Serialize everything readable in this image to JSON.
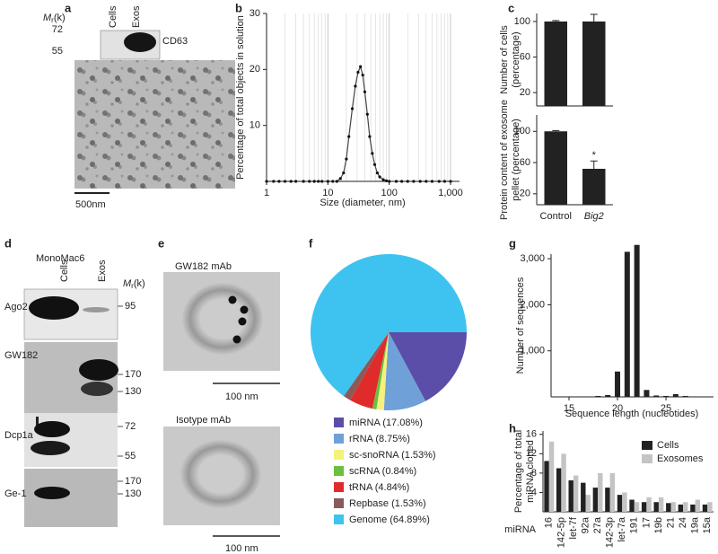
{
  "blot_a": {
    "letter": "a",
    "mr": [
      "M",
      "r",
      "(k)"
    ],
    "lanes": [
      "Cells",
      "Exos"
    ],
    "markers": [
      72,
      55
    ],
    "protein": "CD63",
    "scale": "500nm"
  },
  "blot_d": {
    "letter": "d",
    "cell_line": "MonoMac6",
    "lanes": [
      "Cells",
      "Exos"
    ],
    "mr": [
      "M",
      "r",
      "(k)"
    ],
    "rows": [
      {
        "protein": "Ago2",
        "markers": [
          95
        ]
      },
      {
        "protein": "GW182",
        "markers": [
          170,
          130
        ]
      },
      {
        "protein": "Dcp1a",
        "markers": [
          72,
          55
        ]
      },
      {
        "protein": "Ge-1",
        "markers": [
          170,
          130
        ]
      }
    ]
  },
  "em_e": {
    "letter": "e",
    "images": [
      {
        "label": "GW182 mAb",
        "scale": "100 nm"
      },
      {
        "label": "Isotype mAb",
        "scale": "100 nm"
      }
    ]
  },
  "chart_data": [
    {
      "letter": "b",
      "type": "line",
      "ylabel": "Percentage of total objects in solution",
      "xlabel": "Size (diameter, nm)",
      "xlog": true,
      "grid": true,
      "color": "#444",
      "x": [
        1,
        1.3,
        1.6,
        2,
        2.5,
        3,
        4,
        5,
        6,
        7,
        8,
        10,
        12,
        14,
        16,
        18,
        20,
        22,
        25,
        28,
        31,
        34,
        37,
        40,
        44,
        48,
        53,
        58,
        64,
        70,
        80,
        90,
        100,
        130,
        160,
        200,
        250,
        320,
        400,
        500,
        650,
        800,
        1000
      ],
      "values": [
        0,
        0,
        0,
        0,
        0,
        0,
        0,
        0,
        0,
        0,
        0,
        0,
        0,
        0,
        0.5,
        1.5,
        4,
        8,
        13,
        17,
        19.5,
        20.5,
        19,
        16,
        12,
        8,
        5,
        3,
        1.5,
        0.8,
        0.3,
        0.1,
        0,
        0,
        0,
        0,
        0,
        0,
        0,
        0,
        0,
        0,
        0
      ],
      "xlim": [
        1,
        1400
      ],
      "xticks": [
        1,
        10,
        100,
        {
          "value": 1000,
          "label": "1,000"
        }
      ],
      "ylim": [
        0,
        30
      ],
      "yticks": [
        10,
        20,
        30
      ]
    },
    {
      "letter": "c",
      "type": "bar",
      "ylabel": [
        "Number of cells",
        "(percentage)"
      ],
      "categories": [
        null,
        null
      ],
      "values": [
        100,
        100
      ],
      "errors": [
        1,
        8
      ],
      "color": "#222",
      "ylim": [
        5,
        109
      ],
      "yticks": [
        20,
        60,
        100
      ]
    },
    {
      "type": "bar",
      "ylabel": [
        "Protein content of exosome",
        "pellet (percentage)"
      ],
      "categories": [
        "Control",
        "Big2"
      ],
      "category_italic": [
        false,
        true
      ],
      "values": [
        100,
        52
      ],
      "errors": [
        1,
        10
      ],
      "color": "#222",
      "ylim": [
        6,
        121
      ],
      "yticks": [
        20,
        60,
        100
      ],
      "annotations": [
        {
          "text": "*",
          "category": "Big2"
        }
      ]
    },
    {
      "letter": "f",
      "type": "pie",
      "categories": [
        "miRNA (17.08%)",
        "rRNA (8.75%)",
        "sc-snoRNA (1.53%)",
        "scRNA (0.84%)",
        "tRNA (4.84%)",
        "Repbase (1.53%)",
        "Genome (64.89%)"
      ],
      "values": [
        17.08,
        8.75,
        1.53,
        0.84,
        4.84,
        1.53,
        64.89
      ],
      "colors": [
        "#5b4ea8",
        "#6fa1d8",
        "#f4f27a",
        "#6cbf3f",
        "#e02b2b",
        "#8a5a5a",
        "#3ec3f0"
      ]
    },
    {
      "letter": "g",
      "type": "bar",
      "ylabel": "Number of sequences",
      "xlabel": "Sequence length (nucleotides)",
      "color": "#222",
      "x": [
        14,
        15,
        16,
        17,
        18,
        19,
        20,
        21,
        22,
        23,
        24,
        25,
        26,
        27,
        28,
        29
      ],
      "values": [
        10,
        10,
        10,
        10,
        20,
        40,
        550,
        3150,
        3300,
        150,
        30,
        20,
        60,
        20,
        10,
        10
      ],
      "xlim": [
        13.15,
        29.9
      ],
      "xticks": [
        15,
        20,
        25
      ],
      "ylim": [
        0,
        3100
      ],
      "yticks": [
        {
          "value": 1000,
          "label": "1,000"
        },
        {
          "value": 2000,
          "label": "2,000"
        },
        {
          "value": 3000,
          "label": "3,000"
        }
      ]
    },
    {
      "letter": "h",
      "type": "bar",
      "ylabel": [
        "Percentage of total",
        "miRNA cloned"
      ],
      "xlabel": "miRNA",
      "categories": [
        "16",
        "142-5p",
        "let-7f",
        "92a",
        "27a",
        "142-3p",
        "let-7a",
        "191",
        "17",
        "19b",
        "21",
        "24",
        "19a",
        "15a"
      ],
      "series": [
        {
          "name": "Cells",
          "color": "#222",
          "values": [
            10.5,
            9,
            6.5,
            6,
            5,
            5,
            3.5,
            2.5,
            2,
            2,
            1.8,
            1.5,
            1.5,
            1.5
          ]
        },
        {
          "name": "Exosomes",
          "color": "#c4c4c4",
          "values": [
            14.5,
            12,
            7.5,
            3.5,
            8,
            8,
            4,
            2,
            3,
            3,
            2,
            2,
            2.5,
            2
          ]
        }
      ],
      "ylim": [
        0,
        16.7
      ],
      "yticks": [
        4,
        8,
        12,
        16
      ]
    }
  ]
}
